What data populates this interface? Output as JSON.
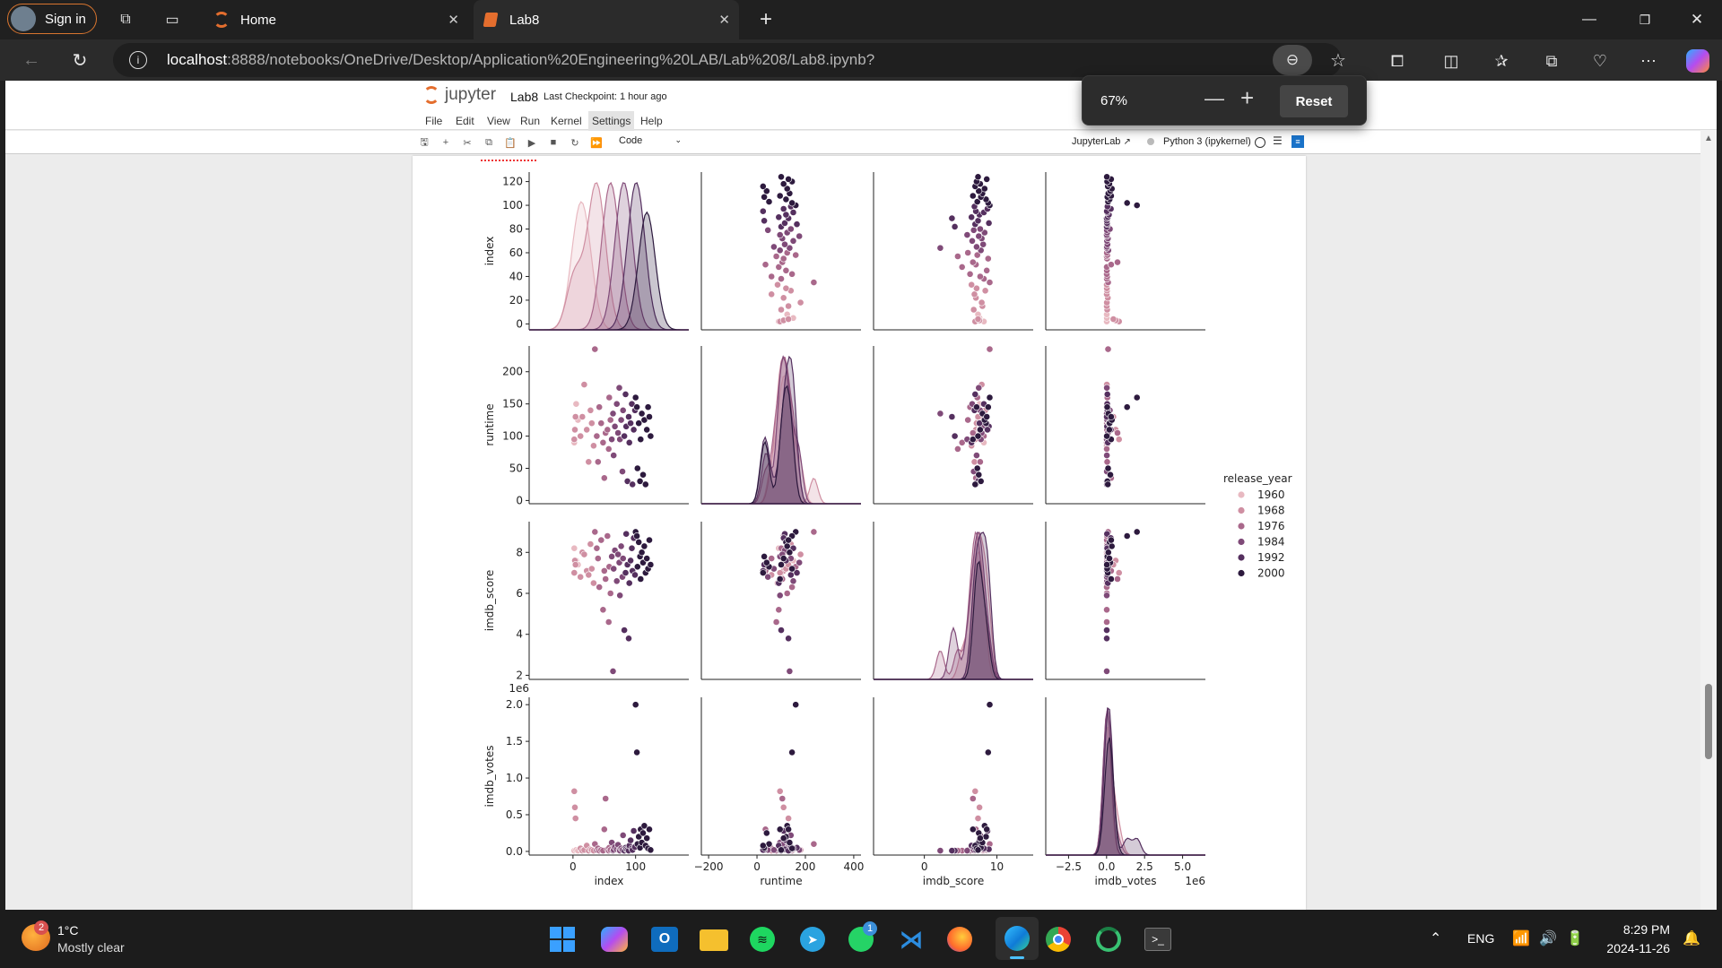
{
  "browser": {
    "signin_label": "Sign in",
    "tabs": [
      {
        "label": "Home"
      },
      {
        "label": "Lab8"
      }
    ],
    "url_host": "localhost",
    "url_path": ":8888/notebooks/OneDrive/Desktop/Application%20Engineering%20LAB/Lab%208/Lab8.ipynb?",
    "zoom_popup": {
      "value": "67%",
      "reset_label": "Reset"
    }
  },
  "jupyter": {
    "logo_text": "jupyter",
    "notebook_name": "Lab8",
    "checkpoint": "Last Checkpoint: 1 hour ago",
    "menu": [
      "File",
      "Edit",
      "View",
      "Run",
      "Kernel",
      "Settings",
      "Help"
    ],
    "cell_type": "Code",
    "jupyterlab_link": "JupyterLab",
    "kernel": "Python 3 (ipykernel)"
  },
  "chart_data": {
    "type": "scatter",
    "title": "",
    "variables": [
      "index",
      "runtime",
      "imdb_score",
      "imdb_votes"
    ],
    "ylabels": [
      "index",
      "runtime",
      "imdb_score",
      "imdb_votes"
    ],
    "xlabels": [
      "index",
      "runtime",
      "imdb_score",
      "imdb_votes"
    ],
    "xticks": [
      [
        "0",
        "100"
      ],
      [
        "−200",
        "0",
        "200",
        "400"
      ],
      [
        "0",
        "10"
      ],
      [
        "−2.5",
        "0.0",
        "2.5",
        "5.0"
      ]
    ],
    "yticks": [
      [
        "0",
        "20",
        "40",
        "60",
        "80",
        "100",
        "120"
      ],
      [
        "0",
        "50",
        "100",
        "150",
        "200"
      ],
      [
        "2",
        "4",
        "6",
        "8"
      ],
      [
        "0.0",
        "0.5",
        "1.0",
        "1.5",
        "2.0"
      ]
    ],
    "xlim": [
      [
        -70,
        185
      ],
      [
        -230,
        430
      ],
      [
        -7,
        15
      ],
      [
        -4,
        6.5
      ]
    ],
    "ylim": [
      [
        -5,
        128
      ],
      [
        -5,
        240
      ],
      [
        1.8,
        9.5
      ],
      [
        -0.05,
        2.1
      ]
    ],
    "votes_offset_label": "1e6",
    "legend": {
      "title": "release_year",
      "position": "right",
      "entries": [
        "1960",
        "1968",
        "1976",
        "1984",
        "1992",
        "2000"
      ],
      "colors": [
        "#e8b9c1",
        "#cf8fa2",
        "#a9688b",
        "#7f4a78",
        "#55305f",
        "#2d1a3e"
      ]
    },
    "scatter_points": [
      {
        "index": 2,
        "runtime": 90,
        "imdb_score": 8.2,
        "imdb_votes": 0.01,
        "release_year": 1962
      },
      {
        "index": 5,
        "runtime": 150,
        "imdb_score": 7.6,
        "imdb_votes": 0.02,
        "release_year": 1963
      },
      {
        "index": 8,
        "runtime": 125,
        "imdb_score": 7.4,
        "imdb_votes": 0.01,
        "release_year": 1961
      },
      {
        "index": 12,
        "runtime": 100,
        "imdb_score": 6.8,
        "imdb_votes": 0.04,
        "release_year": 1965
      },
      {
        "index": 15,
        "runtime": 130,
        "imdb_score": 8.0,
        "imdb_votes": 0.01,
        "release_year": 1964
      },
      {
        "index": 18,
        "runtime": 180,
        "imdb_score": 7.9,
        "imdb_votes": 0.02,
        "release_year": 1966
      },
      {
        "index": 22,
        "runtime": 110,
        "imdb_score": 7.1,
        "imdb_votes": 0.08,
        "release_year": 1966
      },
      {
        "index": 25,
        "runtime": 60,
        "imdb_score": 6.9,
        "imdb_votes": 0.01,
        "release_year": 1967
      },
      {
        "index": 28,
        "runtime": 140,
        "imdb_score": 8.4,
        "imdb_votes": 0.03,
        "release_year": 1968
      },
      {
        "index": 30,
        "runtime": 120,
        "imdb_score": 7.2,
        "imdb_votes": 0.02,
        "release_year": 1969
      },
      {
        "index": 33,
        "runtime": 85,
        "imdb_score": 6.5,
        "imdb_votes": 0.01,
        "release_year": 1970
      },
      {
        "index": 2,
        "runtime": 95,
        "imdb_score": 7.0,
        "imdb_votes": 0.82,
        "release_year": 1968
      },
      {
        "index": 3,
        "runtime": 110,
        "imdb_score": 7.6,
        "imdb_votes": 0.6,
        "release_year": 1970
      },
      {
        "index": 4,
        "runtime": 130,
        "imdb_score": 7.4,
        "imdb_votes": 0.45,
        "release_year": 1971
      },
      {
        "index": 35,
        "runtime": 235,
        "imdb_score": 9.0,
        "imdb_votes": 0.1,
        "release_year": 1972
      },
      {
        "index": 38,
        "runtime": 100,
        "imdb_score": 8.2,
        "imdb_votes": 0.02,
        "release_year": 1972
      },
      {
        "index": 40,
        "runtime": 60,
        "imdb_score": 7.7,
        "imdb_votes": 0.04,
        "release_year": 1973
      },
      {
        "index": 42,
        "runtime": 145,
        "imdb_score": 6.3,
        "imdb_votes": 0.01,
        "release_year": 1974
      },
      {
        "index": 45,
        "runtime": 120,
        "imdb_score": 8.6,
        "imdb_votes": 0.02,
        "release_year": 1975
      },
      {
        "index": 48,
        "runtime": 90,
        "imdb_score": 5.2,
        "imdb_votes": 0.01,
        "release_year": 1975
      },
      {
        "index": 50,
        "runtime": 35,
        "imdb_score": 7.1,
        "imdb_votes": 0.3,
        "release_year": 1976
      },
      {
        "index": 52,
        "runtime": 105,
        "imdb_score": 6.7,
        "imdb_votes": 0.72,
        "release_year": 1977
      },
      {
        "index": 55,
        "runtime": 110,
        "imdb_score": 8.8,
        "imdb_votes": 0.03,
        "release_year": 1977
      },
      {
        "index": 57,
        "runtime": 80,
        "imdb_score": 4.6,
        "imdb_votes": 0.01,
        "release_year": 1978
      },
      {
        "index": 58,
        "runtime": 160,
        "imdb_score": 7.3,
        "imdb_votes": 0.05,
        "release_year": 1978
      },
      {
        "index": 60,
        "runtime": 125,
        "imdb_score": 6.0,
        "imdb_votes": 0.02,
        "release_year": 1979
      },
      {
        "index": 62,
        "runtime": 95,
        "imdb_score": 7.8,
        "imdb_votes": 0.12,
        "release_year": 1980
      },
      {
        "index": 64,
        "runtime": 135,
        "imdb_score": 2.2,
        "imdb_votes": 0.01,
        "release_year": 1980
      },
      {
        "index": 65,
        "runtime": 70,
        "imdb_score": 7.2,
        "imdb_votes": 0.02,
        "release_year": 1981
      },
      {
        "index": 67,
        "runtime": 115,
        "imdb_score": 8.1,
        "imdb_votes": 0.06,
        "release_year": 1982
      },
      {
        "index": 70,
        "runtime": 150,
        "imdb_score": 6.6,
        "imdb_votes": 0.03,
        "release_year": 1983
      },
      {
        "index": 72,
        "runtime": 105,
        "imdb_score": 7.9,
        "imdb_votes": 0.09,
        "release_year": 1984
      },
      {
        "index": 74,
        "runtime": 175,
        "imdb_score": 7.5,
        "imdb_votes": 0.02,
        "release_year": 1984
      },
      {
        "index": 75,
        "runtime": 95,
        "imdb_score": 5.9,
        "imdb_votes": 0.01,
        "release_year": 1985
      },
      {
        "index": 77,
        "runtime": 125,
        "imdb_score": 8.3,
        "imdb_votes": 0.04,
        "release_year": 1986
      },
      {
        "index": 79,
        "runtime": 45,
        "imdb_score": 6.8,
        "imdb_votes": 0.02,
        "release_year": 1986
      },
      {
        "index": 80,
        "runtime": 140,
        "imdb_score": 7.7,
        "imdb_votes": 0.22,
        "release_year": 1987
      },
      {
        "index": 82,
        "runtime": 100,
        "imdb_score": 4.2,
        "imdb_votes": 0.01,
        "release_year": 1988
      },
      {
        "index": 84,
        "runtime": 165,
        "imdb_score": 7.0,
        "imdb_votes": 0.05,
        "release_year": 1988
      },
      {
        "index": 85,
        "runtime": 115,
        "imdb_score": 8.9,
        "imdb_votes": 0.03,
        "release_year": 1989
      },
      {
        "index": 87,
        "runtime": 30,
        "imdb_score": 7.4,
        "imdb_votes": 0.02,
        "release_year": 1990
      },
      {
        "index": 89,
        "runtime": 130,
        "imdb_score": 3.8,
        "imdb_votes": 0.01,
        "release_year": 1990
      },
      {
        "index": 90,
        "runtime": 90,
        "imdb_score": 6.5,
        "imdb_votes": 0.08,
        "release_year": 1991
      },
      {
        "index": 92,
        "runtime": 120,
        "imdb_score": 7.6,
        "imdb_votes": 0.15,
        "release_year": 1992
      },
      {
        "index": 94,
        "runtime": 150,
        "imdb_score": 8.2,
        "imdb_votes": 0.04,
        "release_year": 1992
      },
      {
        "index": 95,
        "runtime": 25,
        "imdb_score": 7.1,
        "imdb_votes": 0.02,
        "release_year": 1993
      },
      {
        "index": 97,
        "runtime": 110,
        "imdb_score": 8.7,
        "imdb_votes": 0.28,
        "release_year": 1994
      },
      {
        "index": 99,
        "runtime": 140,
        "imdb_score": 6.9,
        "imdb_votes": 0.06,
        "release_year": 1995
      },
      {
        "index": 100,
        "runtime": 160,
        "imdb_score": 9.0,
        "imdb_votes": 2.0,
        "release_year": 1996
      },
      {
        "index": 102,
        "runtime": 145,
        "imdb_score": 8.8,
        "imdb_votes": 1.35,
        "release_year": 1997
      },
      {
        "index": 103,
        "runtime": 50,
        "imdb_score": 7.3,
        "imdb_votes": 0.1,
        "release_year": 1997
      },
      {
        "index": 105,
        "runtime": 120,
        "imdb_score": 8.5,
        "imdb_votes": 0.2,
        "release_year": 1998
      },
      {
        "index": 107,
        "runtime": 30,
        "imdb_score": 7.8,
        "imdb_votes": 0.05,
        "release_year": 1998
      },
      {
        "index": 108,
        "runtime": 95,
        "imdb_score": 6.7,
        "imdb_votes": 0.3,
        "release_year": 1999
      },
      {
        "index": 110,
        "runtime": 135,
        "imdb_score": 8.0,
        "imdb_votes": 0.12,
        "release_year": 1999
      },
      {
        "index": 112,
        "runtime": 40,
        "imdb_score": 7.5,
        "imdb_votes": 0.25,
        "release_year": 2000
      },
      {
        "index": 114,
        "runtime": 125,
        "imdb_score": 8.3,
        "imdb_votes": 0.35,
        "release_year": 2000
      },
      {
        "index": 116,
        "runtime": 25,
        "imdb_score": 7.0,
        "imdb_votes": 0.08,
        "release_year": 2000
      },
      {
        "index": 118,
        "runtime": 110,
        "imdb_score": 7.7,
        "imdb_votes": 0.18,
        "release_year": 2000
      },
      {
        "index": 120,
        "runtime": 145,
        "imdb_score": 7.2,
        "imdb_votes": 0.04,
        "release_year": 2000
      },
      {
        "index": 122,
        "runtime": 130,
        "imdb_score": 8.6,
        "imdb_votes": 0.3,
        "release_year": 2000
      },
      {
        "index": 124,
        "runtime": 100,
        "imdb_score": 7.4,
        "imdb_votes": 0.02,
        "release_year": 2000
      }
    ]
  },
  "taskbar": {
    "weather_temp": "1°C",
    "weather_desc": "Mostly clear",
    "weather_badge": "2",
    "whatsapp_badge": "1",
    "lang": "ENG",
    "time": "8:29 PM",
    "date": "2024-11-26"
  }
}
